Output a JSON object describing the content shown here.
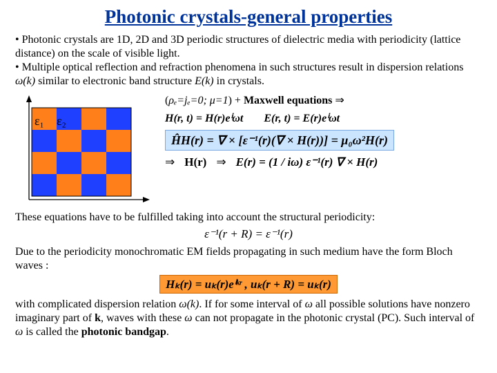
{
  "title": "Photonic crystals-general properties",
  "bullets": {
    "b1": "• Photonic crystals are 1D, 2D and 3D periodic structures of dielectric media with periodicity (lattice distance) on the scale of visible light.",
    "b2a": "• Multiple optical reflection and refraction phenomena in such structures result in dispersion relations ",
    "b2_omega_of_k": "ω(k)",
    "b2b": " similar to electronic band structure ",
    "b2_E_of_k": "E(k)",
    "b2c": " in crystals."
  },
  "checker": {
    "colors": {
      "c1": "#ff7f1a",
      "c2": "#2040ff"
    },
    "rows": 4,
    "cols": 4
  },
  "eps_labels": {
    "e1": "ε₁",
    "e2": "ε₂"
  },
  "assumption": {
    "pre": "(",
    "rho_eq": "ρₑ=jₑ=0; μ=1",
    "post": ") + ",
    "maxwell": "Maxwell equations",
    "implies": "  ⇒"
  },
  "planewave": {
    "H": "H(r, t) = H(r)eⁱωt",
    "E": "E(r, t) = E(r)eⁱωt"
  },
  "operator_eq": "ĤH(r) = ∇ × [ε⁻¹(r)(∇ × H(r))] = μ₀ω²H(r)",
  "hr_row": {
    "imp1": "⇒",
    "Hr": "H(r)",
    "imp2": "⇒",
    "E_eq": "E(r) = (1 / iω) ε⁻¹(r) ∇ × H(r)"
  },
  "periodicity_text": "These equations have to be fulfilled taking into account the structural periodicity:",
  "periodicity_eq": "ε⁻¹(r + R) = ε⁻¹(r)",
  "bloch_text": "Due to the periodicity monochromatic EM fields propagating in such medium have the form Bloch waves :",
  "bloch_eq": "Hₖ(r) = uₖ(r)eⁱᵏʳ ,   uₖ(r + R) = uₖ(r)",
  "final": {
    "a": "with complicated dispersion relation ",
    "omega_of_k": "ω(k)",
    "b": ". If for some interval of ",
    "omega1": "ω",
    "c": " all possible solutions have nonzero imaginary part of ",
    "kbold": "k",
    "d": ", waves with these ",
    "omega2": "ω",
    "e": " can not propagate in the photonic crystal (PC). Such interval of ",
    "omega3": "ω",
    "f": " is called the ",
    "bg": "photonic bandgap",
    "g": "."
  }
}
